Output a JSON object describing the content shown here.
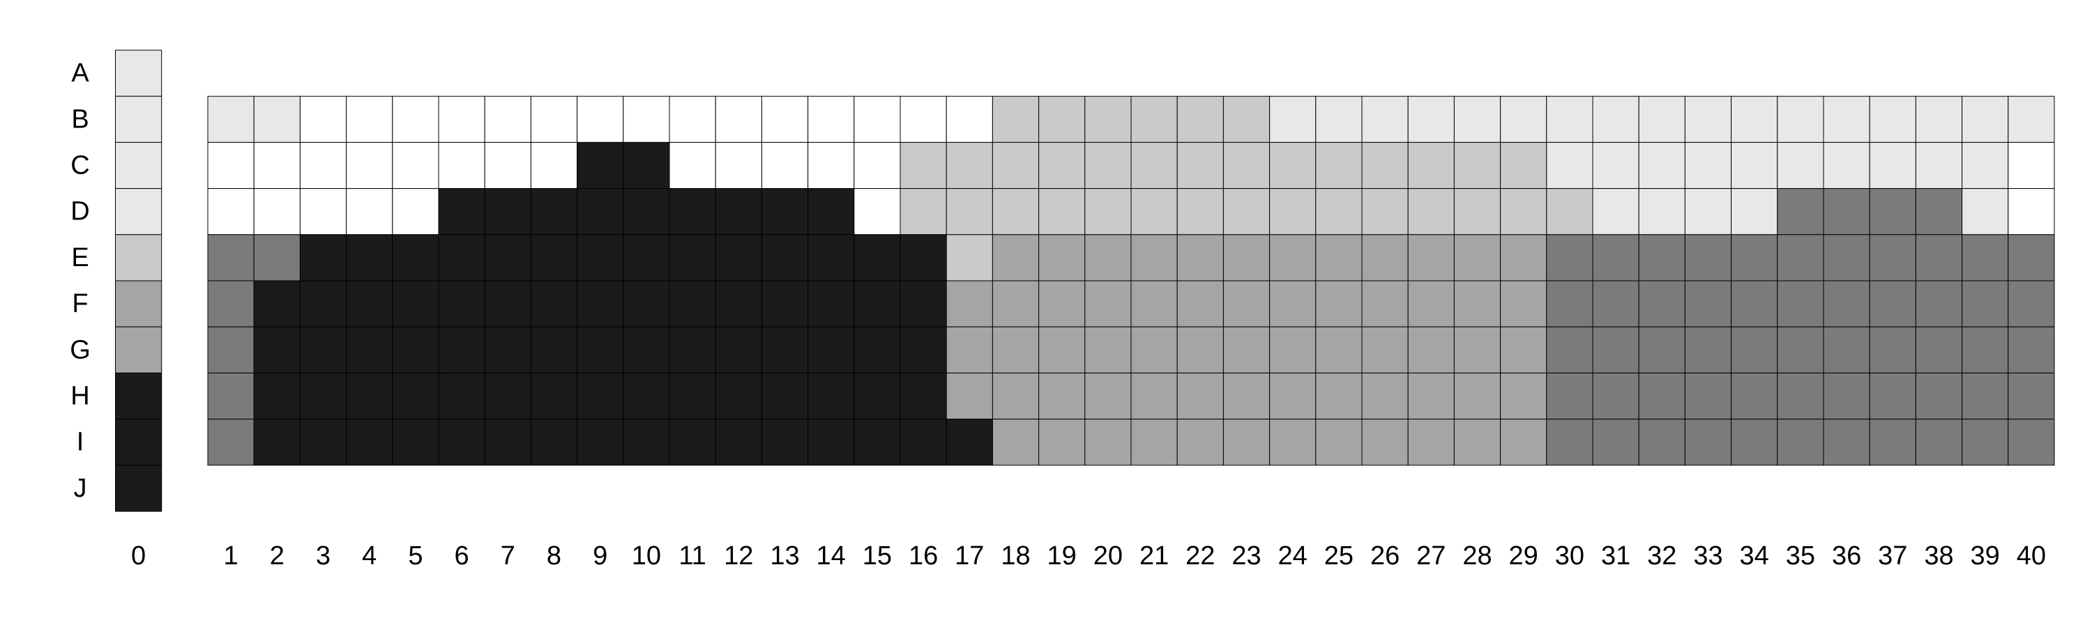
{
  "chart_data": {
    "type": "heatmap",
    "title": "",
    "xlabel": "",
    "ylabel": "",
    "rows": [
      "A",
      "B",
      "C",
      "D",
      "E",
      "F",
      "G",
      "H",
      "I",
      "J"
    ],
    "reference_column": {
      "label": "0",
      "values": [
        2,
        2,
        2,
        2,
        3,
        4,
        4,
        6,
        6,
        6
      ]
    },
    "columns": [
      "1",
      "2",
      "3",
      "4",
      "5",
      "6",
      "7",
      "8",
      "9",
      "10",
      "11",
      "12",
      "13",
      "14",
      "15",
      "16",
      "17",
      "18",
      "19",
      "20",
      "21",
      "22",
      "23",
      "24",
      "25",
      "26",
      "27",
      "28",
      "29",
      "30",
      "31",
      "32",
      "33",
      "34",
      "35",
      "36",
      "37",
      "38",
      "39",
      "40"
    ],
    "grid_rows": [
      "B",
      "C",
      "D",
      "E",
      "F",
      "G",
      "H",
      "I"
    ],
    "values": [
      [
        2,
        2,
        1,
        1,
        1,
        1,
        1,
        1,
        1,
        1,
        1,
        1,
        1,
        1,
        1,
        1,
        1,
        3,
        3,
        3,
        3,
        3,
        3,
        2,
        2,
        2,
        2,
        2,
        2,
        2,
        2,
        2,
        2,
        2,
        2,
        2,
        2,
        2,
        2,
        2
      ],
      [
        1,
        1,
        1,
        1,
        1,
        1,
        1,
        1,
        6,
        6,
        1,
        1,
        1,
        1,
        1,
        3,
        3,
        3,
        3,
        3,
        3,
        3,
        3,
        3,
        3,
        3,
        3,
        3,
        3,
        2,
        2,
        2,
        2,
        2,
        2,
        2,
        2,
        2,
        2,
        1
      ],
      [
        1,
        1,
        1,
        1,
        1,
        6,
        6,
        6,
        6,
        6,
        6,
        6,
        6,
        6,
        1,
        3,
        3,
        3,
        3,
        3,
        3,
        3,
        3,
        3,
        3,
        3,
        3,
        3,
        3,
        3,
        2,
        2,
        2,
        2,
        5,
        5,
        5,
        5,
        2,
        1
      ],
      [
        5,
        5,
        6,
        6,
        6,
        6,
        6,
        6,
        6,
        6,
        6,
        6,
        6,
        6,
        6,
        6,
        3,
        4,
        4,
        4,
        4,
        4,
        4,
        4,
        4,
        4,
        4,
        4,
        4,
        5,
        5,
        5,
        5,
        5,
        5,
        5,
        5,
        5,
        5,
        5
      ],
      [
        5,
        6,
        6,
        6,
        6,
        6,
        6,
        6,
        6,
        6,
        6,
        6,
        6,
        6,
        6,
        6,
        4,
        4,
        4,
        4,
        4,
        4,
        4,
        4,
        4,
        4,
        4,
        4,
        4,
        5,
        5,
        5,
        5,
        5,
        5,
        5,
        5,
        5,
        5,
        5
      ],
      [
        5,
        6,
        6,
        6,
        6,
        6,
        6,
        6,
        6,
        6,
        6,
        6,
        6,
        6,
        6,
        6,
        4,
        4,
        4,
        4,
        4,
        4,
        4,
        4,
        4,
        4,
        4,
        4,
        4,
        5,
        5,
        5,
        5,
        5,
        5,
        5,
        5,
        5,
        5,
        5
      ],
      [
        5,
        6,
        6,
        6,
        6,
        6,
        6,
        6,
        6,
        6,
        6,
        6,
        6,
        6,
        6,
        6,
        4,
        4,
        4,
        4,
        4,
        4,
        4,
        4,
        4,
        4,
        4,
        4,
        4,
        5,
        5,
        5,
        5,
        5,
        5,
        5,
        5,
        5,
        5,
        5
      ],
      [
        5,
        6,
        6,
        6,
        6,
        6,
        6,
        6,
        6,
        6,
        6,
        6,
        6,
        6,
        6,
        6,
        6,
        4,
        4,
        4,
        4,
        4,
        4,
        4,
        4,
        4,
        4,
        4,
        4,
        5,
        5,
        5,
        5,
        5,
        5,
        5,
        5,
        5,
        5,
        5
      ]
    ],
    "palette": {
      "1": "#ffffff",
      "2": "#e8e8e8",
      "3": "#cacaca",
      "4": "#a5a5a5",
      "5": "#7b7b7b",
      "6": "#1b1b1b"
    },
    "cell_border_color": "#000000",
    "legend": false,
    "grid": true
  }
}
